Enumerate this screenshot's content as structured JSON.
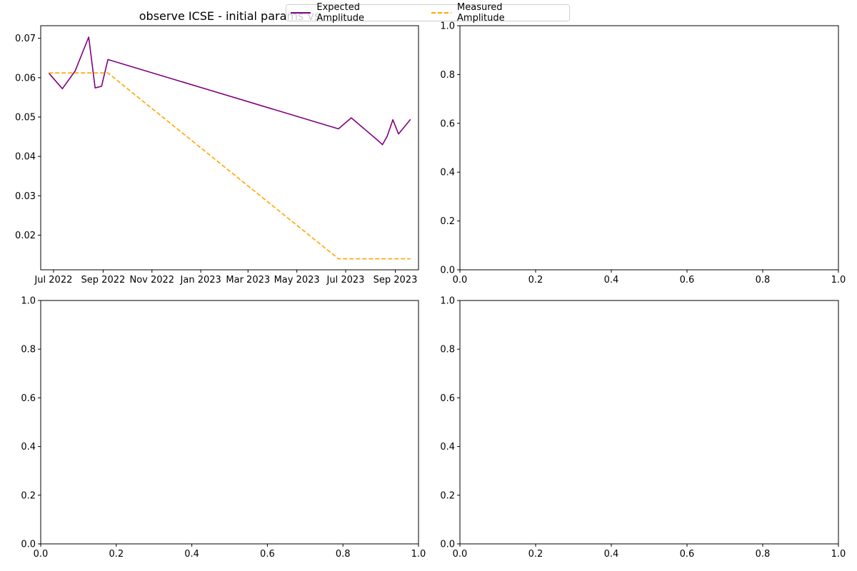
{
  "chart_data": [
    {
      "type": "line",
      "title": "observe ICSE - initial params vs",
      "xlabel": "",
      "ylabel": "",
      "x_axis_type": "date",
      "xlim": [
        "2022-06-15",
        "2023-09-30"
      ],
      "ylim": [
        0.0112,
        0.0732
      ],
      "x_ticks": [
        {
          "date": "2022-07-01",
          "label": "Jul 2022"
        },
        {
          "date": "2022-09-01",
          "label": "Sep 2022"
        },
        {
          "date": "2022-11-01",
          "label": "Nov 2022"
        },
        {
          "date": "2023-01-01",
          "label": "Jan 2023"
        },
        {
          "date": "2023-03-01",
          "label": "Mar 2023"
        },
        {
          "date": "2023-05-01",
          "label": "May 2023"
        },
        {
          "date": "2023-07-01",
          "label": "Jul 2023"
        },
        {
          "date": "2023-09-01",
          "label": "Sep 2023"
        }
      ],
      "y_ticks": [
        0.02,
        0.03,
        0.04,
        0.05,
        0.06,
        0.07
      ],
      "y_tick_labels": [
        "0.02",
        "0.03",
        "0.04",
        "0.05",
        "0.06",
        "0.07"
      ],
      "legend_placement": "top-center",
      "grid": false,
      "series": [
        {
          "name": "Expected Amplitude",
          "color": "#800080",
          "style": "solid",
          "points": [
            {
              "x": "2022-06-25",
              "y": 0.0612
            },
            {
              "x": "2022-07-12",
              "y": 0.0572
            },
            {
              "x": "2022-07-28",
              "y": 0.0617
            },
            {
              "x": "2022-08-14",
              "y": 0.0703
            },
            {
              "x": "2022-08-22",
              "y": 0.0574
            },
            {
              "x": "2022-08-30",
              "y": 0.0578
            },
            {
              "x": "2022-09-07",
              "y": 0.0646
            },
            {
              "x": "2023-06-22",
              "y": 0.047
            },
            {
              "x": "2023-07-08",
              "y": 0.0498
            },
            {
              "x": "2023-07-27",
              "y": 0.0465
            },
            {
              "x": "2023-08-10",
              "y": 0.0441
            },
            {
              "x": "2023-08-16",
              "y": 0.043
            },
            {
              "x": "2023-08-22",
              "y": 0.0452
            },
            {
              "x": "2023-08-29",
              "y": 0.0493
            },
            {
              "x": "2023-09-05",
              "y": 0.0457
            },
            {
              "x": "2023-09-20",
              "y": 0.0494
            }
          ]
        },
        {
          "name": "Measured Amplitude",
          "color": "#FFA500",
          "style": "dashed",
          "points": [
            {
              "x": "2022-06-25",
              "y": 0.0612
            },
            {
              "x": "2022-09-07",
              "y": 0.0612
            },
            {
              "x": "2023-06-22",
              "y": 0.014
            },
            {
              "x": "2023-09-20",
              "y": 0.014
            }
          ]
        }
      ]
    },
    {
      "type": "line",
      "title": "",
      "xlim": [
        0,
        1
      ],
      "ylim": [
        0,
        1
      ],
      "x_ticks": [
        0.0,
        0.2,
        0.4,
        0.6,
        0.8,
        1.0
      ],
      "x_tick_labels": [
        "0.0",
        "0.2",
        "0.4",
        "0.6",
        "0.8",
        "1.0"
      ],
      "y_ticks": [
        0.0,
        0.2,
        0.4,
        0.6,
        0.8,
        1.0
      ],
      "y_tick_labels": [
        "0.0",
        "0.2",
        "0.4",
        "0.6",
        "0.8",
        "1.0"
      ],
      "series": []
    },
    {
      "type": "line",
      "title": "",
      "xlim": [
        0,
        1
      ],
      "ylim": [
        0,
        1
      ],
      "x_ticks": [
        0.0,
        0.2,
        0.4,
        0.6,
        0.8,
        1.0
      ],
      "x_tick_labels": [
        "0.0",
        "0.2",
        "0.4",
        "0.6",
        "0.8",
        "1.0"
      ],
      "y_ticks": [
        0.0,
        0.2,
        0.4,
        0.6,
        0.8,
        1.0
      ],
      "y_tick_labels": [
        "0.0",
        "0.2",
        "0.4",
        "0.6",
        "0.8",
        "1.0"
      ],
      "series": []
    },
    {
      "type": "line",
      "title": "",
      "xlim": [
        0,
        1
      ],
      "ylim": [
        0,
        1
      ],
      "x_ticks": [
        0.0,
        0.2,
        0.4,
        0.6,
        0.8,
        1.0
      ],
      "x_tick_labels": [
        "0.0",
        "0.2",
        "0.4",
        "0.6",
        "0.8",
        "1.0"
      ],
      "y_ticks": [
        0.0,
        0.2,
        0.4,
        0.6,
        0.8,
        1.0
      ],
      "y_tick_labels": [
        "0.0",
        "0.2",
        "0.4",
        "0.6",
        "0.8",
        "1.0"
      ],
      "series": []
    }
  ],
  "legend": {
    "entries": [
      {
        "label": "Expected Amplitude",
        "color": "#800080",
        "style": "solid"
      },
      {
        "label": "Measured Amplitude",
        "color": "#FFA500",
        "style": "dashed"
      }
    ]
  }
}
